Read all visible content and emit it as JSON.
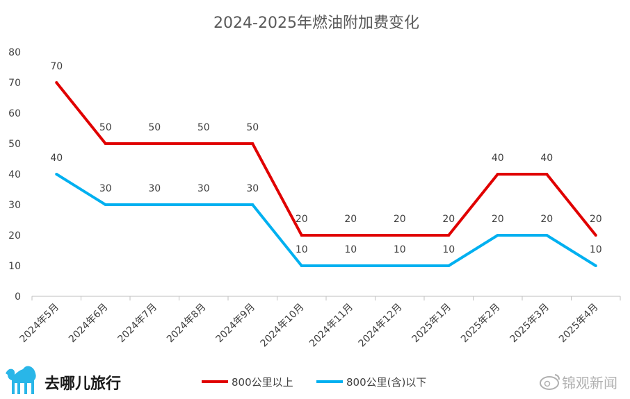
{
  "chart_data": {
    "type": "line",
    "title": "2024-2025年燃油附加费变化",
    "categories": [
      "2024年5月",
      "2024年6月",
      "2024年7月",
      "2024年8月",
      "2024年9月",
      "2024年10月",
      "2024年11月",
      "2024年12月",
      "2025年1月",
      "2025年2月",
      "2025年3月",
      "2025年4月"
    ],
    "series": [
      {
        "name": "800公里以上",
        "color": "#e00000",
        "values": [
          70,
          50,
          50,
          50,
          50,
          20,
          20,
          20,
          20,
          40,
          40,
          20
        ]
      },
      {
        "name": "800公里(含)以下",
        "color": "#00b0f0",
        "values": [
          40,
          30,
          30,
          30,
          30,
          10,
          10,
          10,
          10,
          20,
          20,
          10
        ]
      }
    ],
    "ylim": [
      0,
      80
    ],
    "yticks": [
      0,
      10,
      20,
      30,
      40,
      50,
      60,
      70,
      80
    ],
    "grid": false,
    "legend_position": "bottom"
  },
  "branding": {
    "logo_text": "去哪儿旅行",
    "watermark_text": "锦观新闻"
  }
}
